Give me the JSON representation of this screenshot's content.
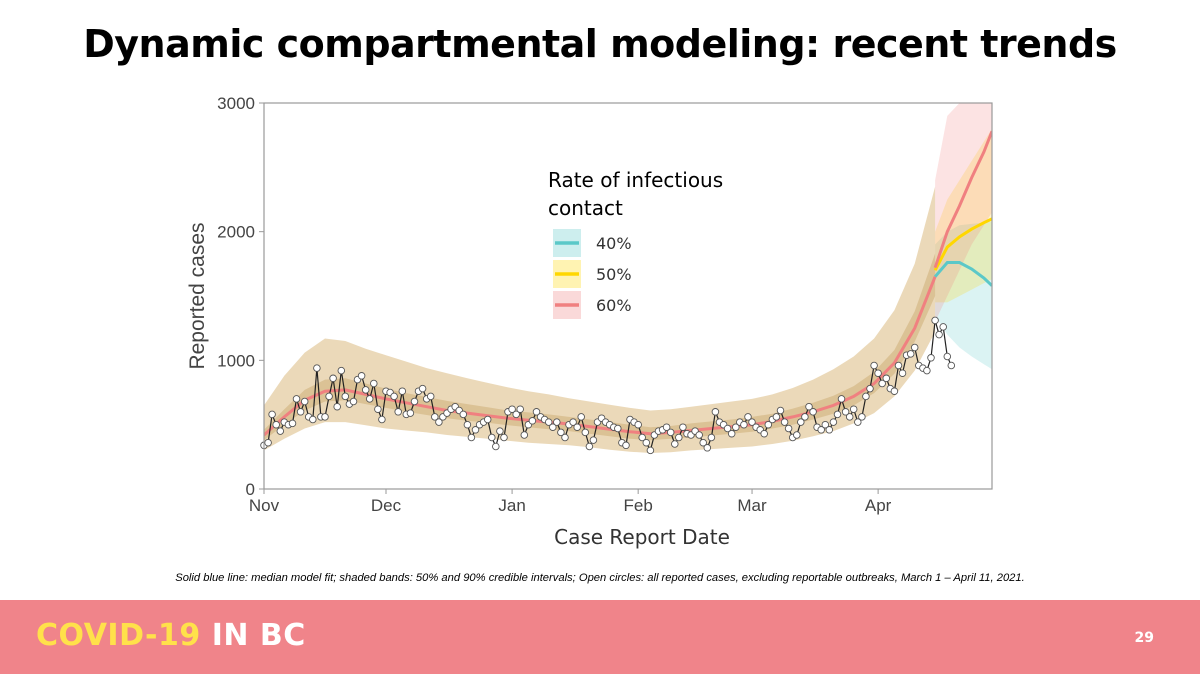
{
  "slide": {
    "title": "Dynamic compartmental modeling: recent trends",
    "footnote": "Solid blue line: median model fit; shaded bands: 50% and 90% credible intervals; Open circles: all reported cases, excluding reportable outbreaks, March 1 – April 11,  2021.",
    "footer_brand_part1": "COVID-19",
    "footer_brand_part2": "IN BC",
    "page_number": "29"
  },
  "colors": {
    "footer_bar": "#f0848a",
    "brand_yellow": "#ffe14a",
    "band_outer": "#e9d5b1",
    "band_inner": "#d5b98a",
    "median_line": "#f08080",
    "series_40": "#5bc8c8",
    "series_50": "#ffd700",
    "series_60": "#f08080",
    "observed_line": "#222222"
  },
  "chart_data": {
    "type": "line",
    "xlabel": "Case Report Date",
    "ylabel": "Reported cases",
    "x_axis": "date",
    "xlim": [
      "2020-11-01",
      "2021-04-29"
    ],
    "ylim": [
      0,
      3000
    ],
    "y_ticks": [
      "0",
      "1000",
      "2000",
      "3000"
    ],
    "x_ticks": [
      {
        "date": "2020-11-01",
        "label": "Nov"
      },
      {
        "date": "2020-12-01",
        "label": "Dec"
      },
      {
        "date": "2021-01-01",
        "label": "Jan"
      },
      {
        "date": "2021-02-01",
        "label": "Feb"
      },
      {
        "date": "2021-03-01",
        "label": "Mar"
      },
      {
        "date": "2021-04-01",
        "label": "Apr"
      }
    ],
    "grid": false,
    "legend": {
      "title": "Rate of infectious contact",
      "placement": "center-top",
      "entries": [
        {
          "label": "40%",
          "color": "#5bc8c8"
        },
        {
          "label": "50%",
          "color": "#ffd700"
        },
        {
          "label": "60%",
          "color": "#f08080"
        }
      ]
    },
    "model_fit": {
      "x": [
        "2020-11-01",
        "2020-11-06",
        "2020-11-11",
        "2020-11-16",
        "2020-11-21",
        "2020-11-26",
        "2020-12-01",
        "2020-12-06",
        "2020-12-11",
        "2020-12-16",
        "2020-12-21",
        "2020-12-26",
        "2020-12-31",
        "2021-01-05",
        "2021-01-10",
        "2021-01-15",
        "2021-01-20",
        "2021-01-25",
        "2021-01-30",
        "2021-02-04",
        "2021-02-09",
        "2021-02-14",
        "2021-02-19",
        "2021-02-24",
        "2021-03-01",
        "2021-03-06",
        "2021-03-11",
        "2021-03-16",
        "2021-03-21",
        "2021-03-26",
        "2021-03-31",
        "2021-04-05",
        "2021-04-10",
        "2021-04-15"
      ],
      "median": [
        420,
        560,
        690,
        760,
        770,
        735,
        700,
        670,
        640,
        610,
        590,
        570,
        550,
        535,
        520,
        505,
        485,
        465,
        445,
        430,
        440,
        455,
        470,
        485,
        500,
        525,
        560,
        600,
        650,
        720,
        820,
        980,
        1250,
        1650
      ],
      "ci50_low": [
        380,
        500,
        610,
        680,
        690,
        660,
        630,
        600,
        575,
        550,
        530,
        515,
        495,
        480,
        465,
        450,
        430,
        410,
        390,
        380,
        390,
        400,
        415,
        430,
        445,
        470,
        500,
        540,
        585,
        650,
        745,
        895,
        1145,
        1500
      ],
      "ci50_high": [
        460,
        620,
        770,
        850,
        860,
        820,
        780,
        745,
        715,
        685,
        660,
        635,
        610,
        595,
        580,
        560,
        540,
        520,
        500,
        480,
        490,
        510,
        525,
        540,
        560,
        585,
        625,
        670,
        725,
        800,
        910,
        1080,
        1380,
        1830
      ],
      "ci90_low": [
        300,
        390,
        470,
        520,
        520,
        495,
        470,
        455,
        440,
        420,
        405,
        390,
        375,
        360,
        350,
        340,
        325,
        305,
        290,
        280,
        285,
        300,
        310,
        320,
        330,
        350,
        375,
        410,
        450,
        510,
        590,
        720,
        920,
        1220
      ],
      "ci90_high": [
        650,
        880,
        1060,
        1170,
        1150,
        1090,
        1040,
        990,
        940,
        900,
        860,
        825,
        790,
        760,
        735,
        705,
        680,
        655,
        630,
        610,
        620,
        640,
        660,
        680,
        700,
        735,
        785,
        850,
        930,
        1030,
        1170,
        1390,
        1750,
        2350
      ]
    },
    "projections": [
      {
        "name": "40%",
        "x": [
          "2021-04-15",
          "2021-04-18",
          "2021-04-21",
          "2021-04-24",
          "2021-04-27",
          "2021-04-29"
        ],
        "median": [
          1650,
          1760,
          1760,
          1710,
          1640,
          1580
        ],
        "ci_low": [
          1350,
          1200,
          1100,
          1030,
          970,
          930
        ],
        "ci_high": [
          1900,
          2000,
          2050,
          2060,
          2070,
          2080
        ]
      },
      {
        "name": "50%",
        "x": [
          "2021-04-15",
          "2021-04-18",
          "2021-04-21",
          "2021-04-24",
          "2021-04-27",
          "2021-04-29"
        ],
        "median": [
          1700,
          1880,
          1960,
          2020,
          2070,
          2100
        ],
        "ci_low": [
          1450,
          1450,
          1500,
          1550,
          1600,
          1630
        ],
        "ci_high": [
          2000,
          2250,
          2400,
          2550,
          2700,
          2800
        ]
      },
      {
        "name": "60%",
        "x": [
          "2021-04-15",
          "2021-04-18",
          "2021-04-21",
          "2021-04-24",
          "2021-04-27",
          "2021-04-29"
        ],
        "median": [
          1720,
          2000,
          2200,
          2420,
          2620,
          2780
        ],
        "ci_low": [
          1300,
          1500,
          1700,
          1900,
          2050,
          2150
        ],
        "ci_high": [
          2400,
          2900,
          3000,
          3000,
          3000,
          3000
        ]
      }
    ],
    "observed": {
      "start_date": "2020-11-01",
      "values": [
        340,
        360,
        580,
        500,
        450,
        520,
        500,
        510,
        700,
        600,
        680,
        560,
        540,
        940,
        560,
        560,
        720,
        860,
        640,
        920,
        720,
        660,
        680,
        850,
        880,
        770,
        700,
        820,
        620,
        540,
        760,
        750,
        720,
        600,
        760,
        580,
        590,
        680,
        760,
        780,
        700,
        720,
        560,
        520,
        560,
        590,
        620,
        640,
        610,
        580,
        500,
        400,
        460,
        500,
        520,
        540,
        400,
        330,
        450,
        400,
        600,
        620,
        580,
        620,
        420,
        500,
        530,
        600,
        560,
        540,
        520,
        480,
        520,
        440,
        400,
        500,
        520,
        480,
        560,
        440,
        330,
        380,
        520,
        550,
        520,
        500,
        480,
        470,
        360,
        340,
        540,
        520,
        500,
        400,
        360,
        300,
        420,
        450,
        460,
        480,
        440,
        350,
        400,
        480,
        430,
        420,
        450,
        420,
        360,
        320,
        400,
        600,
        520,
        500,
        470,
        430,
        480,
        520,
        500,
        560,
        520,
        480,
        460,
        430,
        500,
        540,
        560,
        610,
        520,
        470,
        400,
        420,
        520,
        560,
        640,
        600,
        480,
        460,
        500,
        460,
        520,
        580,
        700,
        600,
        560,
        620,
        520,
        560,
        720,
        780,
        960,
        900,
        820,
        860,
        780,
        760,
        960,
        900,
        1040,
        1050,
        1100,
        960,
        940,
        920,
        1020,
        1310,
        1200,
        1260,
        1030,
        960
      ]
    }
  }
}
